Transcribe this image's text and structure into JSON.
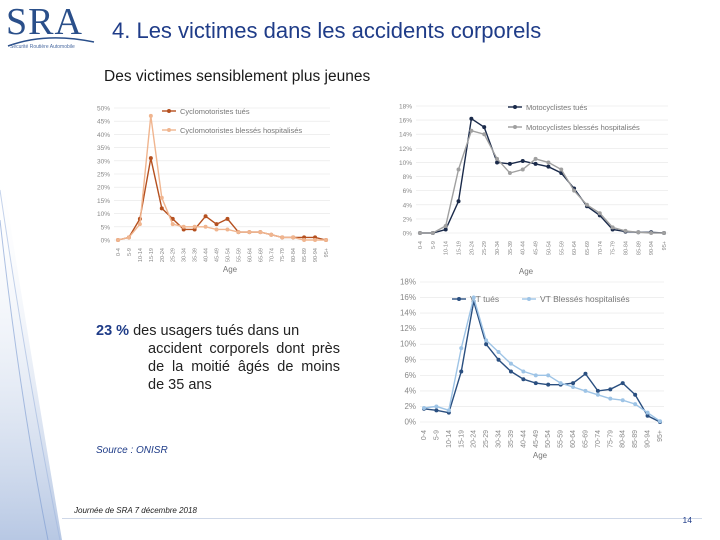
{
  "logo": {
    "text": "SRA",
    "subtitle": "Sécurité Routière Automobile"
  },
  "title": "4. Les victimes dans les accidents corporels",
  "subtitle": "Des victimes sensiblement plus jeunes",
  "highlight": {
    "number": "23 %",
    "line1": "des usagers tués dans un",
    "rest": "accident corporels dont près de la moitié âgés de moins de 35 ans"
  },
  "source": "Source : ONISR",
  "footer": "Journée de SRA 7 décembre 2018",
  "page_number": "14",
  "colors": {
    "accent": "#1f3c88",
    "cyclo_tues": "#b5501f",
    "cyclo_blesses": "#f0b58f",
    "moto_tues": "#1a2a4a",
    "moto_blesses": "#a0a0a0",
    "vt_tues": "#2a4f80",
    "vt_blesses": "#9ec4e6"
  },
  "chart_data": [
    {
      "type": "line",
      "title": "",
      "xlabel": "Age",
      "ylabel": "",
      "ylim": [
        0,
        50
      ],
      "yticks": [
        "0%",
        "5%",
        "10%",
        "15%",
        "20%",
        "25%",
        "30%",
        "35%",
        "40%",
        "45%",
        "50%"
      ],
      "categories": [
        "0-4",
        "5-9",
        "10-14",
        "15-19",
        "20-24",
        "25-29",
        "30-34",
        "35-39",
        "40-44",
        "45-49",
        "50-54",
        "55-59",
        "60-64",
        "65-69",
        "70-74",
        "75-79",
        "80-84",
        "85-89",
        "90-94",
        "95+"
      ],
      "series": [
        {
          "name": "Cyclomotoristes tués",
          "values": [
            0,
            1,
            8,
            31,
            12,
            8,
            4,
            4,
            9,
            6,
            8,
            3,
            3,
            3,
            2,
            1,
            1,
            1,
            1,
            0
          ]
        },
        {
          "name": "Cyclomotoristes blessés hospitalisés",
          "values": [
            0,
            1,
            6,
            47,
            16,
            6,
            5,
            5,
            5,
            4,
            4,
            3,
            3,
            3,
            2,
            1,
            1,
            0,
            0,
            0
          ]
        }
      ]
    },
    {
      "type": "line",
      "title": "",
      "xlabel": "Age",
      "ylabel": "",
      "ylim": [
        0,
        18
      ],
      "yticks": [
        "0%",
        "2%",
        "4%",
        "6%",
        "8%",
        "10%",
        "12%",
        "14%",
        "16%",
        "18%"
      ],
      "categories": [
        "0-4",
        "5-9",
        "10-14",
        "15-19",
        "20-24",
        "25-29",
        "30-34",
        "35-39",
        "40-44",
        "45-49",
        "50-54",
        "55-59",
        "60-64",
        "65-69",
        "70-74",
        "75-79",
        "80-84",
        "85-89",
        "90-94",
        "95+"
      ],
      "series": [
        {
          "name": "Motocyclistes tués",
          "values": [
            0,
            0,
            0.5,
            4.5,
            16.2,
            15,
            10,
            9.8,
            10.2,
            9.8,
            9.4,
            8.5,
            6.3,
            3.8,
            2.5,
            0.5,
            0.2,
            0.1,
            0.1,
            0
          ]
        },
        {
          "name": "Motocyclistes blessés hospitalisés",
          "values": [
            0,
            0,
            1,
            9,
            14.5,
            14,
            10.5,
            8.5,
            9,
            10.5,
            10,
            9,
            6,
            4,
            2.8,
            0.8,
            0.3,
            0.1,
            0,
            0
          ]
        }
      ]
    },
    {
      "type": "line",
      "title": "",
      "xlabel": "Age",
      "ylabel": "",
      "ylim": [
        0,
        18
      ],
      "yticks": [
        "0%",
        "2%",
        "4%",
        "6%",
        "8%",
        "10%",
        "12%",
        "14%",
        "16%",
        "18%"
      ],
      "categories": [
        "0-4",
        "5-9",
        "10-14",
        "15-19",
        "20-24",
        "25-29",
        "30-34",
        "35-39",
        "40-44",
        "45-49",
        "50-54",
        "55-59",
        "60-64",
        "65-69",
        "70-74",
        "75-79",
        "80-84",
        "85-89",
        "90-94",
        "95+"
      ],
      "series": [
        {
          "name": "VT tués",
          "values": [
            1.7,
            1.5,
            1.2,
            6.5,
            15.5,
            10,
            8,
            6.5,
            5.5,
            5,
            4.8,
            4.8,
            5,
            6.2,
            4,
            4.2,
            5,
            3.5,
            0.8,
            0
          ]
        },
        {
          "name": "VT Blessés hospitalisés",
          "values": [
            1.8,
            2,
            1.5,
            9.5,
            16,
            10.5,
            9,
            7.5,
            6.5,
            6,
            6,
            5,
            4.5,
            4,
            3.5,
            3,
            2.8,
            2.3,
            1.2,
            0.1
          ]
        }
      ]
    }
  ]
}
